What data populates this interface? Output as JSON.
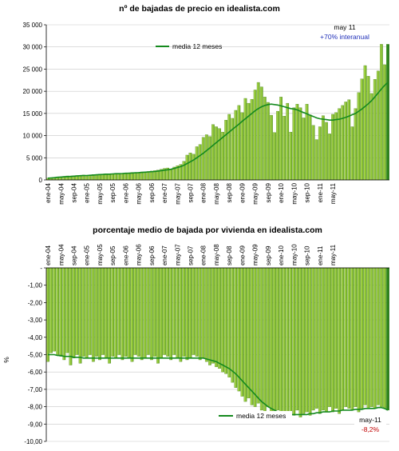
{
  "chart_data": [
    {
      "type": "bar",
      "title": "nº de bajadas de precio en idealista.com",
      "ylim": [
        0,
        35000
      ],
      "yticks": [
        "0",
        "5 000",
        "10 000",
        "15 000",
        "20 000",
        "25 000",
        "30 000",
        "35 000"
      ],
      "ytick_values": [
        0,
        5000,
        10000,
        15000,
        20000,
        25000,
        30000,
        35000
      ],
      "x_tick_labels": [
        "ene-04",
        "may-04",
        "sep-04",
        "ene-05",
        "may-05",
        "sep-05",
        "ene-06",
        "may-06",
        "sep-06",
        "ene-07",
        "may-07",
        "sep-07",
        "ene-08",
        "may-08",
        "sep-08",
        "ene-09",
        "may-09",
        "sep-09",
        "ene-10",
        "may-10",
        "sep-10",
        "ene-11",
        "may-11"
      ],
      "legend": "media 12 meses",
      "annotation_date": "may 11",
      "annotation_change": "+70% interanual",
      "grid": true,
      "values": [
        400,
        500,
        600,
        700,
        700,
        800,
        900,
        800,
        900,
        1000,
        1000,
        1100,
        1000,
        1100,
        1200,
        1200,
        1300,
        1300,
        1400,
        1300,
        1400,
        1500,
        1400,
        1500,
        1500,
        1600,
        1700,
        1600,
        1700,
        1800,
        1800,
        1900,
        2000,
        2100,
        2200,
        2400,
        2600,
        2700,
        2500,
        2900,
        3200,
        3500,
        4200,
        5600,
        6100,
        5800,
        7500,
        8000,
        9600,
        10200,
        9800,
        12500,
        12000,
        11600,
        10800,
        13500,
        14800,
        13900,
        15700,
        16800,
        15200,
        18400,
        17300,
        18200,
        20300,
        22000,
        21000,
        18700,
        17500,
        14600,
        10700,
        15500,
        18700,
        14400,
        17300,
        10800,
        16300,
        17100,
        16300,
        14000,
        17100,
        14700,
        12300,
        9100,
        12000,
        14500,
        13000,
        10400,
        14800,
        15200,
        16100,
        16800,
        17600,
        18100,
        12000,
        16100,
        19700,
        22800,
        25800,
        23400,
        19500,
        22700,
        24600,
        30600,
        26000,
        30600
      ],
      "ma12": [
        400,
        450,
        500,
        600,
        650,
        700,
        750,
        800,
        850,
        900,
        950,
        1000,
        1000,
        1050,
        1100,
        1150,
        1200,
        1250,
        1300,
        1300,
        1350,
        1400,
        1400,
        1450,
        1500,
        1520,
        1550,
        1600,
        1650,
        1700,
        1750,
        1800,
        1850,
        1900,
        2000,
        2100,
        2200,
        2300,
        2400,
        2600,
        2800,
        3000,
        3300,
        3700,
        4100,
        4500,
        5000,
        5500,
        6000,
        6600,
        7200,
        7800,
        8400,
        9000,
        9600,
        10200,
        10800,
        11400,
        12000,
        12600,
        13200,
        13800,
        14400,
        15000,
        15600,
        16100,
        16500,
        16800,
        17000,
        17100,
        17000,
        16900,
        16700,
        16500,
        16300,
        16100,
        16000,
        15800,
        15500,
        15200,
        14900,
        14600,
        14300,
        14000,
        13800,
        13700,
        13600,
        13500,
        13500,
        13600,
        13700,
        13900,
        14100,
        14400,
        14700,
        15000,
        15500,
        16000,
        16600,
        17200,
        17900,
        18700,
        19600,
        20500,
        21300,
        22000
      ]
    },
    {
      "type": "bar",
      "title": "porcentaje medio de bajada por vivienda en idealista.com",
      "ylabel": "%",
      "ylim": [
        -10,
        0
      ],
      "yticks": [
        "-",
        "-1,00",
        "-2,00",
        "-3,00",
        "-4,00",
        "-5,00",
        "-6,00",
        "-7,00",
        "-8,00",
        "-9,00",
        "-10,00"
      ],
      "ytick_values": [
        0,
        -1,
        -2,
        -3,
        -4,
        -5,
        -6,
        -7,
        -8,
        -9,
        -10
      ],
      "x_tick_labels": [
        "ene-04",
        "may-04",
        "sep-04",
        "ene-05",
        "may-05",
        "sep-05",
        "ene-06",
        "may-06",
        "sep-06",
        "ene-07",
        "may-07",
        "sep-07",
        "ene-08",
        "may-08",
        "sep-08",
        "ene-09",
        "may-09",
        "sep-09",
        "ene-10",
        "may-10",
        "sep-10",
        "ene-11",
        "may-11"
      ],
      "legend": "media 12 meses",
      "annotation_date": "may-11",
      "annotation_value": "-8,2%",
      "grid": true,
      "values": [
        -5.4,
        -4.9,
        -4.8,
        -5.0,
        -5.1,
        -5.3,
        -4.9,
        -5.6,
        -5.2,
        -5.0,
        -5.5,
        -5.1,
        -5.2,
        -5.0,
        -5.4,
        -5.1,
        -5.3,
        -5.0,
        -5.2,
        -5.5,
        -5.1,
        -5.2,
        -5.0,
        -5.3,
        -5.1,
        -5.2,
        -5.4,
        -5.0,
        -5.1,
        -5.3,
        -5.2,
        -5.0,
        -5.3,
        -5.1,
        -5.5,
        -5.2,
        -5.0,
        -5.1,
        -5.3,
        -5.0,
        -5.2,
        -5.4,
        -5.1,
        -5.3,
        -5.2,
        -5.0,
        -5.1,
        -5.3,
        -5.2,
        -5.4,
        -5.6,
        -5.5,
        -5.7,
        -5.8,
        -6.0,
        -6.1,
        -6.3,
        -6.6,
        -6.9,
        -7.1,
        -7.4,
        -7.7,
        -7.5,
        -7.9,
        -8.0,
        -7.8,
        -8.2,
        -8.3,
        -8.0,
        -8.4,
        -8.5,
        -8.2,
        -8.4,
        -8.6,
        -8.3,
        -8.4,
        -8.5,
        -8.2,
        -8.6,
        -8.4,
        -8.3,
        -8.5,
        -8.2,
        -8.1,
        -8.4,
        -8.2,
        -8.3,
        -8.0,
        -8.3,
        -8.1,
        -8.4,
        -8.2,
        -8.0,
        -8.1,
        -8.2,
        -8.0,
        -8.3,
        -8.1,
        -7.9,
        -8.1,
        -8.0,
        -8.1,
        -7.9,
        -8.0,
        -8.1,
        -8.2
      ],
      "ma12": [
        -5.0,
        -5.0,
        -5.0,
        -5.05,
        -5.05,
        -5.1,
        -5.1,
        -5.1,
        -5.15,
        -5.15,
        -5.15,
        -5.2,
        -5.2,
        -5.2,
        -5.2,
        -5.2,
        -5.2,
        -5.2,
        -5.2,
        -5.2,
        -5.2,
        -5.2,
        -5.2,
        -5.2,
        -5.2,
        -5.2,
        -5.2,
        -5.2,
        -5.2,
        -5.2,
        -5.2,
        -5.2,
        -5.2,
        -5.2,
        -5.2,
        -5.2,
        -5.2,
        -5.2,
        -5.2,
        -5.2,
        -5.2,
        -5.2,
        -5.2,
        -5.2,
        -5.2,
        -5.2,
        -5.2,
        -5.2,
        -5.2,
        -5.25,
        -5.3,
        -5.35,
        -5.4,
        -5.5,
        -5.6,
        -5.7,
        -5.8,
        -5.95,
        -6.1,
        -6.3,
        -6.5,
        -6.7,
        -6.9,
        -7.1,
        -7.3,
        -7.5,
        -7.7,
        -7.85,
        -8.0,
        -8.1,
        -8.2,
        -8.3,
        -8.35,
        -8.4,
        -8.45,
        -8.45,
        -8.45,
        -8.45,
        -8.45,
        -8.45,
        -8.45,
        -8.4,
        -8.4,
        -8.35,
        -8.35,
        -8.3,
        -8.3,
        -8.3,
        -8.25,
        -8.25,
        -8.25,
        -8.2,
        -8.2,
        -8.2,
        -8.2,
        -8.15,
        -8.15,
        -8.15,
        -8.1,
        -8.1,
        -8.1,
        -8.1,
        -8.05,
        -8.05,
        -8.1,
        -8.2
      ]
    }
  ],
  "colors": {
    "bar_light": "#9bd13c",
    "bar_mid": "#6bab1e",
    "bar_edge": "#3d7a10",
    "bar_highlight": "#1e7a12",
    "ma_line": "#148a1e",
    "axis": "#000000",
    "grid": "#c8c8c8"
  }
}
